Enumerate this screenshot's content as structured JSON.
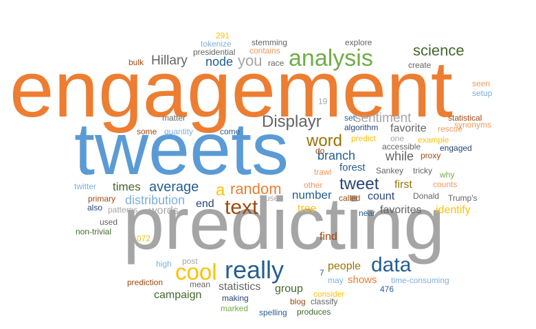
{
  "colors": {
    "orange": "#ED7D31",
    "blue": "#5B9BD5",
    "gray": "#A5A5A5",
    "gold": "#FFC000",
    "green": "#70AD47",
    "navy": "#264478",
    "brown": "#9E480E",
    "darkgray": "#636363",
    "olive": "#997300",
    "steel": "#255E91",
    "forest": "#43682B",
    "lightblue": "#7CAFDD",
    "peach": "#F1975A"
  },
  "words": [
    {
      "text": "engagement",
      "color": "orange"
    },
    {
      "text": "tweets",
      "color": "blue"
    },
    {
      "text": "predicting",
      "color": "gray"
    },
    {
      "text": "analysis",
      "color": "green"
    },
    {
      "text": "science",
      "color": "forest"
    },
    {
      "text": "Displayr",
      "color": "darkgray"
    },
    {
      "text": "really",
      "color": "steel"
    },
    {
      "text": "cool",
      "color": "gold"
    },
    {
      "text": "text",
      "color": "brown"
    },
    {
      "text": "data",
      "color": "steel"
    },
    {
      "text": "tweet",
      "color": "navy"
    },
    {
      "text": "random",
      "color": "orange"
    },
    {
      "text": "word",
      "color": "olive"
    },
    {
      "text": "you",
      "color": "gray"
    },
    {
      "text": "Hillary",
      "color": "darkgray"
    },
    {
      "text": "node",
      "color": "steel"
    },
    {
      "text": "sentiment",
      "color": "gray"
    },
    {
      "text": "branch",
      "color": "steel"
    },
    {
      "text": "while",
      "color": "darkgray"
    },
    {
      "text": "average",
      "color": "steel"
    },
    {
      "text": "distribution",
      "color": "lightblue"
    },
    {
      "text": "times",
      "color": "forest"
    },
    {
      "text": "words",
      "color": "gray"
    },
    {
      "text": "end",
      "color": "navy"
    },
    {
      "text": "a",
      "color": "gold"
    },
    {
      "text": "forest",
      "color": "steel"
    },
    {
      "text": "first",
      "color": "olive"
    },
    {
      "text": "count",
      "color": "navy"
    },
    {
      "text": "number",
      "color": "steel"
    },
    {
      "text": "tree",
      "color": "gold"
    },
    {
      "text": "favorites",
      "color": "darkgray"
    },
    {
      "text": "identify",
      "color": "gold"
    },
    {
      "text": "favorite",
      "color": "darkgray"
    },
    {
      "text": "find",
      "color": "brown"
    },
    {
      "text": "people",
      "color": "olive"
    },
    {
      "text": "shows",
      "color": "orange"
    },
    {
      "text": "statistics",
      "color": "darkgray"
    },
    {
      "text": "group",
      "color": "forest"
    },
    {
      "text": "campaign",
      "color": "forest"
    },
    {
      "text": "291",
      "color": "gold"
    },
    {
      "text": "tokenize",
      "color": "lightblue"
    },
    {
      "text": "presidential",
      "color": "darkgray"
    },
    {
      "text": "stemming",
      "color": "darkgray"
    },
    {
      "text": "contains",
      "color": "peach"
    },
    {
      "text": "race",
      "color": "darkgray"
    },
    {
      "text": "explore",
      "color": "darkgray"
    },
    {
      "text": "bulk",
      "color": "brown"
    },
    {
      "text": "create",
      "color": "darkgray"
    },
    {
      "text": "seen",
      "color": "peach"
    },
    {
      "text": "setup",
      "color": "lightblue"
    },
    {
      "text": "19",
      "color": "gray"
    },
    {
      "text": "statistical",
      "color": "brown"
    },
    {
      "text": "synonyms",
      "color": "peach"
    },
    {
      "text": "matter",
      "color": "darkgray"
    },
    {
      "text": "some",
      "color": "brown"
    },
    {
      "text": "quantity",
      "color": "lightblue"
    },
    {
      "text": "come",
      "color": "steel"
    },
    {
      "text": "set",
      "color": "steel"
    },
    {
      "text": "algorithm",
      "color": "navy"
    },
    {
      "text": "one",
      "color": "gray"
    },
    {
      "text": "rescue",
      "color": "peach"
    },
    {
      "text": "predict",
      "color": "gold"
    },
    {
      "text": "example",
      "color": "gold"
    },
    {
      "text": "do",
      "color": "brown"
    },
    {
      "text": "accessible",
      "color": "darkgray"
    },
    {
      "text": "proxy",
      "color": "brown"
    },
    {
      "text": "engaged",
      "color": "navy"
    },
    {
      "text": "Sankey",
      "color": "darkgray"
    },
    {
      "text": "tricky",
      "color": "darkgray"
    },
    {
      "text": "why",
      "color": "green"
    },
    {
      "text": "trawl",
      "color": "peach"
    },
    {
      "text": "twitter",
      "color": "lightblue"
    },
    {
      "text": "other",
      "color": "peach"
    },
    {
      "text": "counts",
      "color": "peach"
    },
    {
      "text": "primary",
      "color": "brown"
    },
    {
      "text": "user",
      "color": "gray"
    },
    {
      "text": "called",
      "color": "brown"
    },
    {
      "text": "Donald",
      "color": "darkgray"
    },
    {
      "text": "Trump's",
      "color": "darkgray"
    },
    {
      "text": "also",
      "color": "navy"
    },
    {
      "text": "patterns",
      "color": "gray"
    },
    {
      "text": "near",
      "color": "steel"
    },
    {
      "text": "used",
      "color": "darkgray"
    },
    {
      "text": "non-trivial",
      "color": "forest"
    },
    {
      "text": "072",
      "color": "gold"
    },
    {
      "text": "high",
      "color": "lightblue"
    },
    {
      "text": "post",
      "color": "gray"
    },
    {
      "text": "7",
      "color": "steel"
    },
    {
      "text": "may",
      "color": "lightblue"
    },
    {
      "text": "time-consuming",
      "color": "lightblue"
    },
    {
      "text": "prediction",
      "color": "brown"
    },
    {
      "text": "mean",
      "color": "darkgray"
    },
    {
      "text": "making",
      "color": "navy"
    },
    {
      "text": "consider",
      "color": "gold"
    },
    {
      "text": "476",
      "color": "steel"
    },
    {
      "text": "blog",
      "color": "brown"
    },
    {
      "text": "classify",
      "color": "darkgray"
    },
    {
      "text": "marked",
      "color": "green"
    },
    {
      "text": "spelling",
      "color": "steel"
    },
    {
      "text": "produces",
      "color": "forest"
    }
  ]
}
